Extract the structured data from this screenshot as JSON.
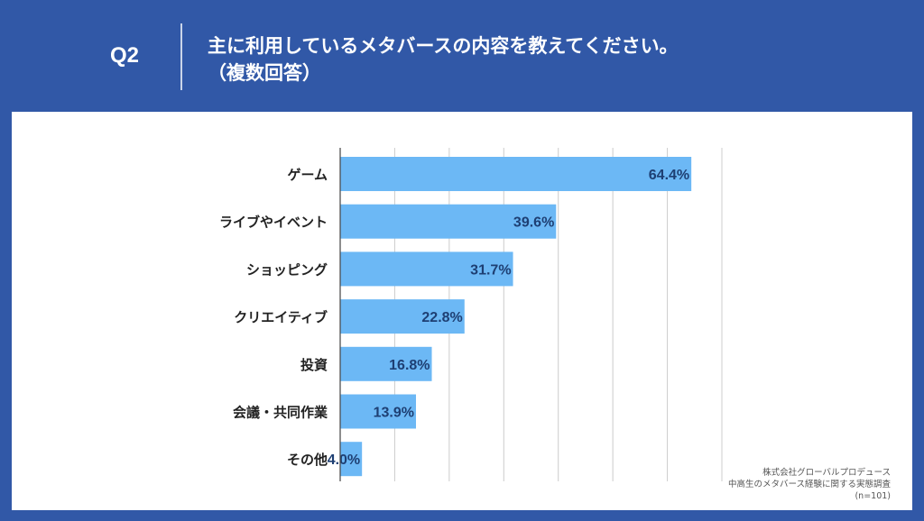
{
  "header": {
    "q_label": "Q2",
    "title_line1": "主に利用しているメタバースの内容を教えてください。",
    "title_line2": "（複数回答）"
  },
  "colors": {
    "background": "#3158a7",
    "panel": "#ffffff",
    "bar": "#6cb8f5",
    "value_text": "#1e3f73",
    "grid": "#cccccc"
  },
  "chart_data": {
    "type": "bar",
    "orientation": "horizontal",
    "categories": [
      "ゲーム",
      "ライブやイベント",
      "ショッピング",
      "クリエイティブ",
      "投資",
      "会議・共同作業",
      "その他"
    ],
    "values": [
      64.4,
      39.6,
      31.7,
      22.8,
      16.8,
      13.9,
      4.0
    ],
    "value_labels": [
      "64.4%",
      "39.6%",
      "31.7%",
      "22.8%",
      "16.8%",
      "13.9%",
      "4.0%"
    ],
    "xlim": [
      0,
      70
    ],
    "grid": true,
    "legend": "none"
  },
  "source": {
    "line1": "株式会社グローバルプロデュース",
    "line2": "中高生のメタバース経験に関する実態調査",
    "line3": "(n=101)"
  }
}
